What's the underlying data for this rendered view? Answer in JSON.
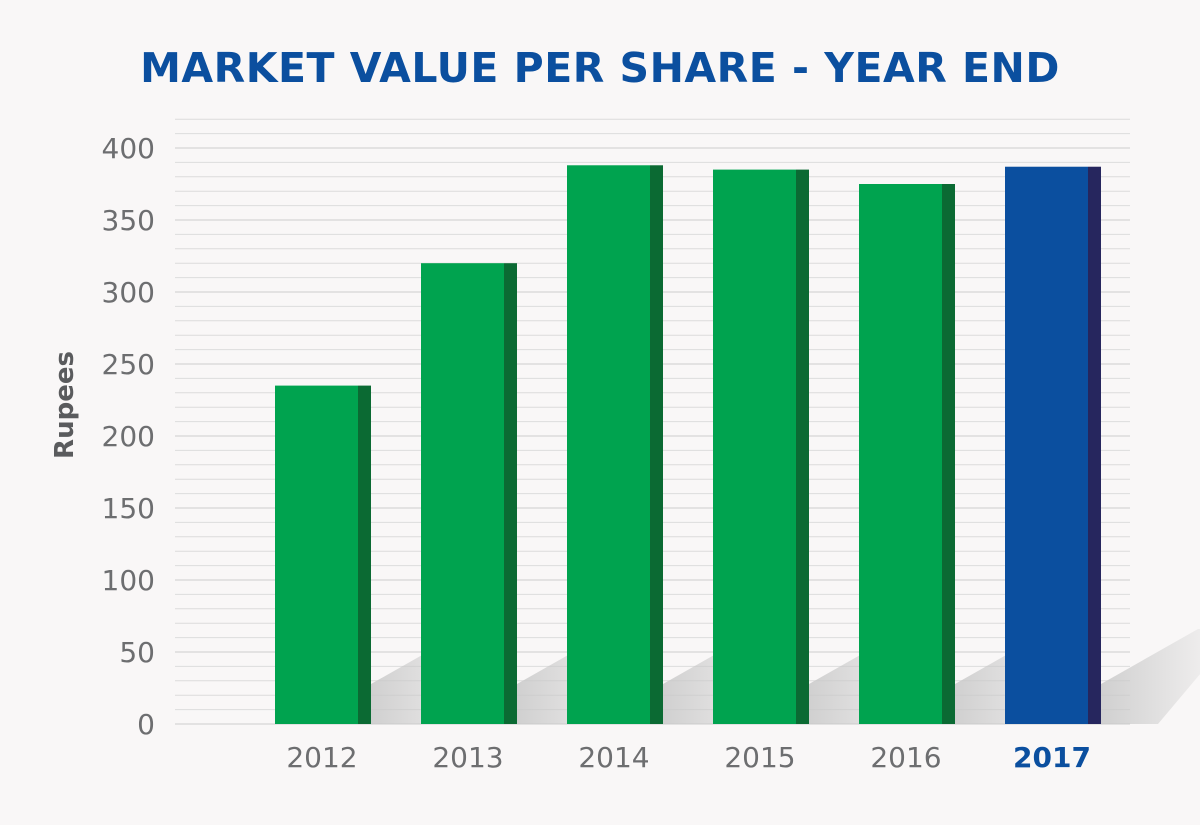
{
  "chart_data": {
    "type": "bar",
    "title": "MARKET VALUE PER SHARE - YEAR END",
    "xlabel": "",
    "ylabel": "Rupees",
    "categories": [
      "2012",
      "2013",
      "2014",
      "2015",
      "2016",
      "2017"
    ],
    "values": [
      235,
      320,
      388,
      385,
      375,
      387
    ],
    "highlight": "2017",
    "ylim": [
      0,
      400
    ],
    "yticks": [
      "0",
      "50",
      "100",
      "150",
      "200",
      "250",
      "300",
      "350",
      "400"
    ],
    "grid": true,
    "colors": {
      "bar": "#00a34f",
      "bar_side": "#0b6a33",
      "highlight_bar": "#0b4f9f",
      "highlight_side": "#26265e",
      "title": "#0b4f9f",
      "grid": "#dcdcdc"
    }
  }
}
